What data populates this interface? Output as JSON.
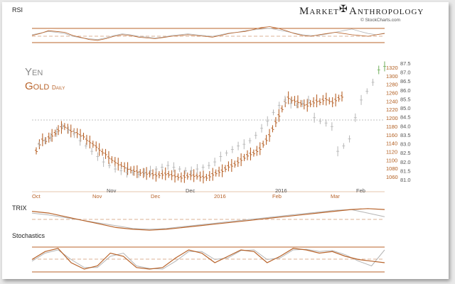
{
  "brand": {
    "word1": "Market",
    "word2": "Anthropology",
    "credit": "© StockCharts.com"
  },
  "legend": {
    "yen": "Yen",
    "gold": "Gold",
    "period": "Daily"
  },
  "panels": {
    "rsi": "RSI",
    "trix": "TRIX",
    "stochastics": "Stochastics"
  },
  "colors": {
    "gold": "#b8632a",
    "yen": "#8a8a8a",
    "yen_light": "#b5b5b5",
    "recent": "#6fae5a"
  },
  "chart_data": {
    "type": "line",
    "x_tick_labels_gold": [
      "Oct",
      "Nov",
      "Dec",
      "2016",
      "Feb",
      "Mar"
    ],
    "x_tick_labels_yen": [
      "Nov",
      "Dec",
      "2016",
      "Feb"
    ],
    "y_ticks_yen": [
      "87.5",
      "87.0",
      "86.5",
      "86.0",
      "85.5",
      "85.0",
      "84.5",
      "84.0",
      "83.5",
      "83.0",
      "82.5",
      "82.0",
      "81.5",
      "81.0"
    ],
    "y_ticks_gold": [
      "1320",
      "1300",
      "1280",
      "1260",
      "1240",
      "1220",
      "1200",
      "1180",
      "1160",
      "1140",
      "1120",
      "1100",
      "1080",
      "1060"
    ],
    "yen_ylim": [
      81.0,
      87.5
    ],
    "gold_ylim": [
      1060,
      1320
    ],
    "series": [
      {
        "name": "Gold",
        "values": [
          1125,
          1140,
          1150,
          1148,
          1155,
          1160,
          1165,
          1172,
          1178,
          1180,
          1175,
          1170,
          1168,
          1165,
          1160,
          1158,
          1150,
          1145,
          1140,
          1135,
          1128,
          1122,
          1118,
          1110,
          1105,
          1100,
          1095,
          1092,
          1088,
          1085,
          1082,
          1080,
          1078,
          1076,
          1075,
          1074,
          1073,
          1072,
          1070,
          1071,
          1072,
          1073,
          1072,
          1070,
          1068,
          1066,
          1065,
          1067,
          1068,
          1070,
          1069,
          1068,
          1067,
          1066,
          1065,
          1068,
          1072,
          1075,
          1078,
          1080,
          1085,
          1090,
          1092,
          1095,
          1100,
          1105,
          1110,
          1115,
          1118,
          1120,
          1125,
          1130,
          1140,
          1150,
          1160,
          1175,
          1190,
          1205,
          1220,
          1235,
          1245,
          1240,
          1238,
          1236,
          1232,
          1230,
          1228,
          1232,
          1235,
          1238,
          1236,
          1240,
          1242,
          1238,
          1235,
          1240,
          1244,
          1248
        ]
      },
      {
        "name": "Yen",
        "values": [
          83.0,
          83.2,
          83.4,
          83.7,
          84.0,
          83.8,
          83.6,
          83.2,
          82.9,
          82.6,
          82.3,
          82.0,
          81.8,
          81.6,
          81.5,
          81.4,
          81.4,
          81.3,
          81.4,
          81.5,
          81.6,
          81.7,
          81.8,
          81.7,
          81.6,
          81.5,
          81.5,
          81.6,
          81.7,
          81.8,
          82.0,
          82.3,
          82.5,
          82.7,
          82.9,
          83.0,
          83.2,
          83.5,
          83.9,
          84.3,
          84.8,
          85.2,
          85.5,
          85.3,
          85.2,
          85.3,
          85.5,
          84.5,
          84.3,
          84.2,
          84.0,
          82.6,
          82.9,
          83.3,
          84.5,
          85.5,
          86.0,
          86.5,
          87.2,
          87.4
        ]
      }
    ],
    "rsi_gold": [
      50,
      55,
      62,
      60,
      58,
      50,
      45,
      40,
      38,
      42,
      48,
      52,
      50,
      46,
      44,
      42,
      45,
      48,
      50,
      52,
      50,
      48,
      46,
      50,
      55,
      58,
      60,
      65,
      70,
      72,
      68,
      62,
      55,
      50,
      48,
      52,
      55,
      58,
      55,
      52,
      50,
      48,
      52,
      55
    ],
    "rsi_yen": [
      52,
      56,
      60,
      58,
      55,
      48,
      44,
      42,
      40,
      44,
      50,
      54,
      52,
      48,
      46,
      44,
      46,
      50,
      52,
      54,
      52,
      50,
      48,
      52,
      56,
      58,
      62,
      64,
      66,
      68,
      64,
      60,
      56,
      52,
      50,
      50,
      54,
      58,
      62,
      66,
      60,
      55,
      52,
      56
    ],
    "trix_gold": [
      0.05,
      0.04,
      0.02,
      0.0,
      -0.02,
      -0.04,
      -0.05,
      -0.055,
      -0.05,
      -0.04,
      -0.03,
      -0.02,
      -0.01,
      0.0,
      0.01,
      0.02,
      0.03,
      0.04,
      0.05,
      0.06,
      0.065,
      0.06
    ],
    "trix_yen": [
      0.04,
      0.03,
      0.015,
      0.0,
      -0.015,
      -0.03,
      -0.045,
      -0.05,
      -0.045,
      -0.035,
      -0.025,
      -0.015,
      -0.005,
      0.005,
      0.015,
      0.025,
      0.035,
      0.045,
      0.055,
      0.06,
      0.04,
      0.02
    ],
    "stoch_gold": [
      50,
      75,
      85,
      40,
      20,
      30,
      70,
      60,
      25,
      20,
      25,
      55,
      80,
      70,
      40,
      60,
      80,
      75,
      40,
      60,
      85,
      80,
      70,
      75,
      60,
      50,
      45,
      40
    ],
    "stoch_yen": [
      45,
      70,
      80,
      50,
      25,
      25,
      60,
      70,
      30,
      22,
      20,
      45,
      75,
      75,
      50,
      55,
      78,
      80,
      50,
      55,
      80,
      82,
      75,
      78,
      65,
      45,
      30,
      80
    ]
  }
}
